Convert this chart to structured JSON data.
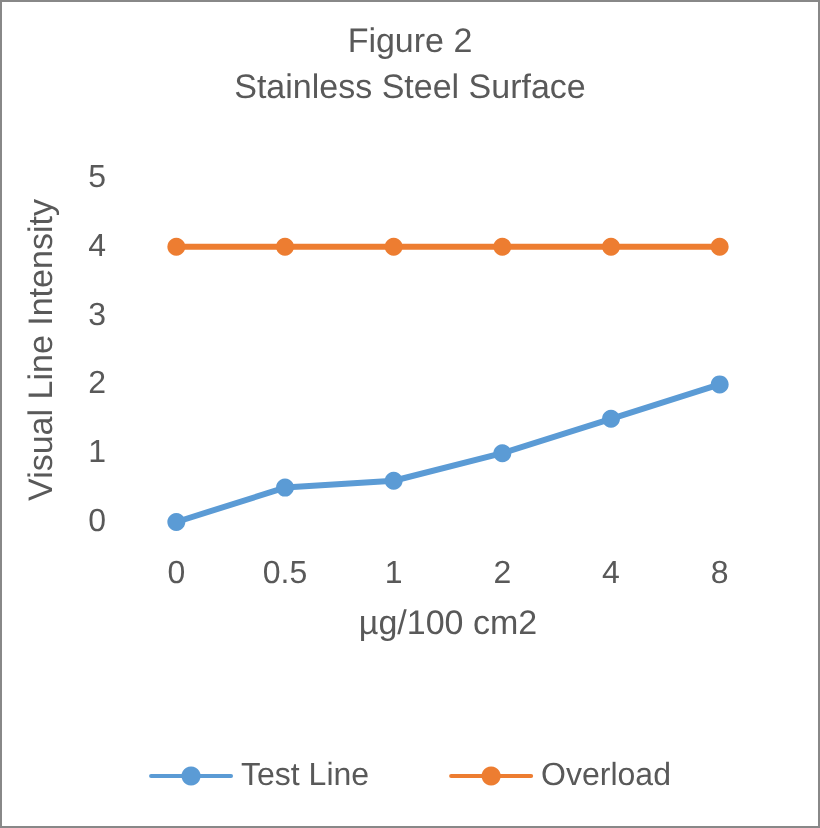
{
  "chart_data": {
    "type": "line",
    "title": "Figure 2",
    "subtitle": "Stainless Steel Surface",
    "xlabel": "µg/100 cm2",
    "ylabel": "Visual Line Intensity",
    "categories": [
      "0",
      "0.5",
      "1",
      "2",
      "4",
      "8"
    ],
    "series": [
      {
        "name": "Test Line",
        "color": "#5b9bd5",
        "values": [
          0,
          0.5,
          0.6,
          1,
          1.5,
          2
        ]
      },
      {
        "name": "Overload",
        "color": "#ed7d31",
        "values": [
          4,
          4,
          4,
          4,
          4,
          4
        ]
      }
    ],
    "ylim": [
      0,
      5
    ],
    "yticks": [
      0,
      1,
      2,
      3,
      4,
      5
    ],
    "grid": false,
    "legend": "bottom",
    "marker": "circle",
    "line_style": "solid"
  }
}
